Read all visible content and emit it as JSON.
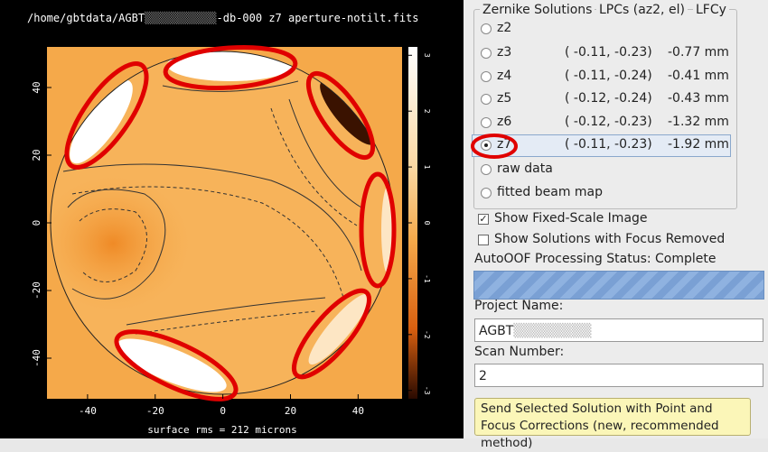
{
  "plot": {
    "title_prefix": "/home/gbtdata/AGBT",
    "title_suffix": "-db-000 z7 aperture-notilt.fits",
    "xlim": [
      -52,
      53
    ],
    "ylim": [
      -52,
      52
    ],
    "xticks": [
      -40,
      -20,
      0,
      20,
      40
    ],
    "yticks": [
      40,
      20,
      0,
      -20,
      -40
    ],
    "colorbar_lim": [
      -3.15,
      3.15
    ],
    "colorbar_ticks": [
      3,
      2,
      1,
      0,
      -1,
      -2,
      -3
    ],
    "caption": "surface rms = 212 microns"
  },
  "panel": {
    "group_title": "Zernike Solutions",
    "columns": [
      "LPCs (az2, el)",
      "LFCy"
    ],
    "options": [
      {
        "label": "z2",
        "checked": false
      },
      {
        "label": "z3",
        "lpcs": "( -0.11, -0.23)",
        "lfcy": "-0.77 mm",
        "checked": false
      },
      {
        "label": "z4",
        "lpcs": "( -0.11, -0.24)",
        "lfcy": "-0.41 mm",
        "checked": false
      },
      {
        "label": "z5",
        "lpcs": "( -0.12, -0.24)",
        "lfcy": "-0.43 mm",
        "checked": false
      },
      {
        "label": "z6",
        "lpcs": "( -0.12, -0.23)",
        "lfcy": "-1.32 mm",
        "checked": false
      },
      {
        "label": "z7",
        "lpcs": "( -0.11, -0.23)",
        "lfcy": "-1.92 mm",
        "checked": true
      },
      {
        "label": "raw data",
        "checked": false
      },
      {
        "label": "fitted beam map",
        "checked": false
      }
    ],
    "checkboxes": [
      {
        "label": "Show Fixed-Scale Image",
        "checked": true
      },
      {
        "label": "Show Solutions with Focus Removed",
        "checked": false
      }
    ],
    "status": "AutoOOF Processing Status: Complete",
    "project_label": "Project Name:",
    "project_value": "AGBT",
    "scan_label": "Scan Number:",
    "scan_value": "2",
    "button": "Send Selected Solution with Point and Focus Corrections (new, recommended method)"
  }
}
